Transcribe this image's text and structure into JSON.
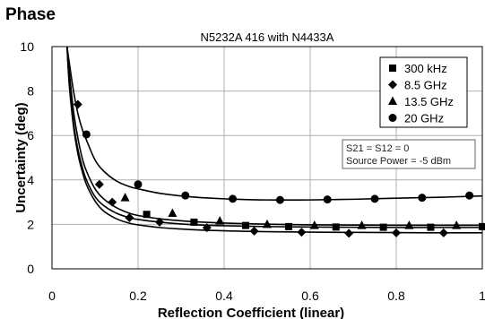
{
  "heading": "Phase",
  "chart_data": {
    "type": "line",
    "title": "N5232A 416 with N4433A",
    "xlabel": "Reflection Coefficient (linear)",
    "ylabel": "Uncertainty (deg)",
    "xlim": [
      0,
      1
    ],
    "ylim": [
      0,
      10
    ],
    "xticks": [
      0,
      0.2,
      0.4,
      0.6,
      0.8,
      1
    ],
    "xtick_labels": [
      "0",
      "0.2",
      "0.4",
      "0.6",
      "0.8",
      "1"
    ],
    "yticks": [
      0,
      2,
      4,
      6,
      8,
      10
    ],
    "ytick_labels": [
      "0",
      "2",
      "4",
      "6",
      "8",
      "10"
    ],
    "grid": true,
    "legend_position": "top-right",
    "note_lines": [
      "S21 = S12 = 0",
      "Source Power = -5 dBm"
    ],
    "series": [
      {
        "name": "300 kHz",
        "marker": "square",
        "curve_x": [
          0.035,
          0.04,
          0.05,
          0.06,
          0.07,
          0.08,
          0.1,
          0.12,
          0.15,
          0.18,
          0.2,
          0.25,
          0.3,
          0.35,
          0.4,
          0.5,
          0.6,
          0.7,
          0.8,
          0.9,
          1.0
        ],
        "curve_y": [
          10.0,
          8.5,
          6.6,
          5.4,
          4.6,
          4.0,
          3.25,
          2.85,
          2.5,
          2.3,
          2.22,
          2.1,
          2.02,
          1.97,
          1.94,
          1.9,
          1.88,
          1.87,
          1.86,
          1.86,
          1.86
        ],
        "marker_x": [
          0.22,
          0.33,
          0.45,
          0.55,
          0.66,
          0.77,
          0.88,
          1.0
        ],
        "marker_y": [
          2.45,
          2.1,
          1.95,
          1.9,
          1.88,
          1.87,
          1.87,
          1.9
        ]
      },
      {
        "name": "8.5 GHz",
        "marker": "diamond",
        "curve_x": [
          0.035,
          0.04,
          0.05,
          0.06,
          0.07,
          0.08,
          0.1,
          0.12,
          0.15,
          0.18,
          0.2,
          0.25,
          0.3,
          0.35,
          0.4,
          0.5,
          0.6,
          0.7,
          0.8,
          0.9,
          1.0
        ],
        "curve_y": [
          10.0,
          8.3,
          6.4,
          5.2,
          4.4,
          3.8,
          3.05,
          2.6,
          2.25,
          2.05,
          1.98,
          1.86,
          1.79,
          1.74,
          1.71,
          1.67,
          1.65,
          1.64,
          1.63,
          1.62,
          1.62
        ],
        "marker_x": [
          0.06,
          0.11,
          0.14,
          0.18,
          0.25,
          0.36,
          0.47,
          0.58,
          0.69,
          0.8,
          0.91
        ],
        "marker_y": [
          7.4,
          3.8,
          3.0,
          2.3,
          2.1,
          1.85,
          1.7,
          1.65,
          1.6,
          1.62,
          1.62
        ]
      },
      {
        "name": "13.5 GHz",
        "marker": "triangle",
        "curve_x": [
          0.035,
          0.04,
          0.05,
          0.06,
          0.07,
          0.08,
          0.1,
          0.12,
          0.15,
          0.18,
          0.2,
          0.25,
          0.3,
          0.35,
          0.4,
          0.5,
          0.6,
          0.7,
          0.8,
          0.9,
          1.0
        ],
        "curve_y": [
          10.0,
          8.9,
          7.1,
          5.9,
          5.0,
          4.4,
          3.6,
          3.15,
          2.75,
          2.5,
          2.4,
          2.25,
          2.16,
          2.1,
          2.06,
          2.01,
          1.98,
          1.97,
          1.96,
          1.96,
          1.96
        ],
        "marker_x": [
          0.17,
          0.28,
          0.39,
          0.5,
          0.61,
          0.72,
          0.83,
          0.94
        ],
        "marker_y": [
          3.2,
          2.5,
          2.15,
          2.0,
          1.95,
          1.95,
          1.95,
          1.95
        ]
      },
      {
        "name": "20 GHz",
        "marker": "circle",
        "curve_x": [
          0.035,
          0.04,
          0.05,
          0.06,
          0.07,
          0.08,
          0.1,
          0.12,
          0.15,
          0.18,
          0.2,
          0.25,
          0.3,
          0.35,
          0.4,
          0.5,
          0.6,
          0.7,
          0.8,
          0.9,
          1.0
        ],
        "curve_y": [
          10.0,
          9.3,
          8.0,
          7.0,
          6.3,
          5.8,
          4.9,
          4.4,
          3.95,
          3.7,
          3.6,
          3.4,
          3.28,
          3.2,
          3.15,
          3.1,
          3.1,
          3.13,
          3.18,
          3.22,
          3.28
        ],
        "marker_x": [
          0.08,
          0.2,
          0.31,
          0.42,
          0.53,
          0.64,
          0.75,
          0.86,
          0.97
        ],
        "marker_y": [
          6.05,
          3.8,
          3.3,
          3.15,
          3.1,
          3.12,
          3.15,
          3.2,
          3.3
        ]
      }
    ]
  }
}
